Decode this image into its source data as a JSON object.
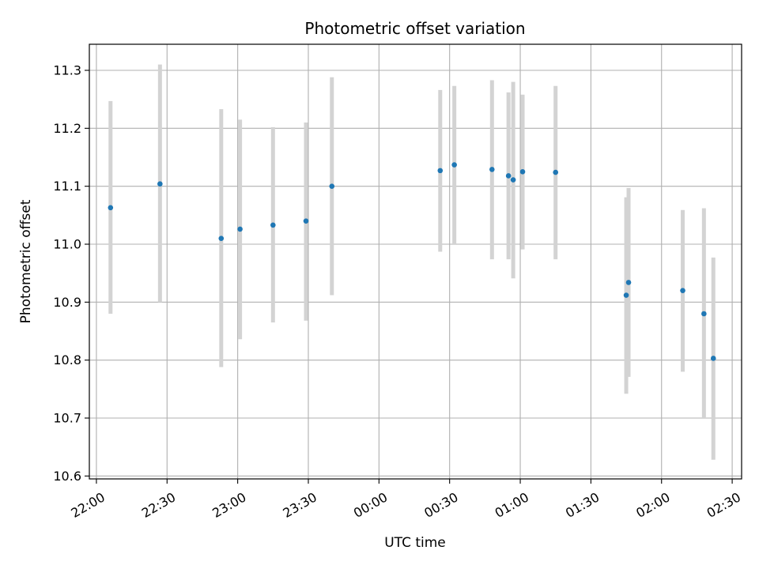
{
  "chart_data": {
    "type": "scatter",
    "title": "Photometric offset variation",
    "xlabel": "UTC time",
    "ylabel": "Photometric offset",
    "x_ticks": [
      "22:00",
      "22:30",
      "23:00",
      "23:30",
      "00:00",
      "00:30",
      "01:00",
      "01:30",
      "02:00",
      "02:30"
    ],
    "y_ticks": [
      "10.6",
      "10.7",
      "10.8",
      "10.9",
      "11.0",
      "11.1",
      "11.2",
      "11.3"
    ],
    "xlim": [
      "21:57",
      "02:34"
    ],
    "ylim": [
      10.595,
      11.345
    ],
    "grid": true,
    "colors": {
      "points": "#1f77b4",
      "error_bars": "#d3d3d3",
      "grid": "#b0b0b0"
    },
    "points": [
      {
        "x": "22:06",
        "y": 11.063,
        "low": 10.88,
        "high": 11.247
      },
      {
        "x": "22:27",
        "y": 11.104,
        "low": 10.9,
        "high": 11.31
      },
      {
        "x": "22:53",
        "y": 11.01,
        "low": 10.788,
        "high": 11.233
      },
      {
        "x": "23:01",
        "y": 11.026,
        "low": 10.836,
        "high": 11.215
      },
      {
        "x": "23:15",
        "y": 11.033,
        "low": 10.865,
        "high": 11.202
      },
      {
        "x": "23:29",
        "y": 11.04,
        "low": 10.868,
        "high": 11.21
      },
      {
        "x": "23:40",
        "y": 11.1,
        "low": 10.912,
        "high": 11.288
      },
      {
        "x": "00:26",
        "y": 11.127,
        "low": 10.987,
        "high": 11.266
      },
      {
        "x": "00:32",
        "y": 11.137,
        "low": 11.0,
        "high": 11.273
      },
      {
        "x": "00:48",
        "y": 11.129,
        "low": 10.974,
        "high": 11.283
      },
      {
        "x": "00:55",
        "y": 11.118,
        "low": 10.974,
        "high": 11.262
      },
      {
        "x": "00:57",
        "y": 11.111,
        "low": 10.941,
        "high": 11.28
      },
      {
        "x": "01:01",
        "y": 11.125,
        "low": 10.991,
        "high": 11.258
      },
      {
        "x": "01:15",
        "y": 11.124,
        "low": 10.974,
        "high": 11.273
      },
      {
        "x": "01:45",
        "y": 10.912,
        "low": 10.742,
        "high": 11.081
      },
      {
        "x": "01:46",
        "y": 10.934,
        "low": 10.771,
        "high": 11.097
      },
      {
        "x": "02:09",
        "y": 10.92,
        "low": 10.78,
        "high": 11.059
      },
      {
        "x": "02:18",
        "y": 10.88,
        "low": 10.7,
        "high": 11.062
      },
      {
        "x": "02:22",
        "y": 10.803,
        "low": 10.628,
        "high": 10.977
      }
    ]
  }
}
